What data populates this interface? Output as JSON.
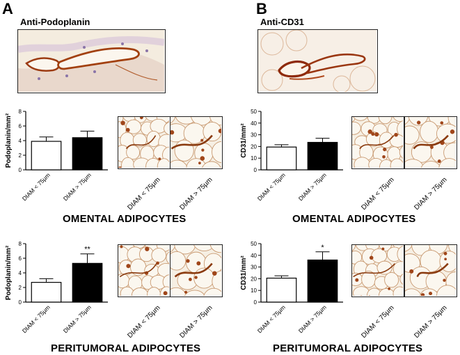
{
  "panels": [
    {
      "letter": "A",
      "stain_title": "Anti-Podoplanin",
      "top_image": "podoplanin-vessel-micrograph",
      "rows": [
        {
          "section_label": "OMENTAL ADIPOCYTES",
          "micrograph_labels": [
            "DIAM < 75µm",
            "DIAM > 75µm"
          ],
          "chart": {
            "type": "bar",
            "ylabel": "Podoplanin/mm²",
            "categories": [
              "DIAM < 75µm",
              "DIAM > 75µm"
            ],
            "values": [
              3.9,
              4.4
            ],
            "errors": [
              0.6,
              0.9
            ],
            "fills": [
              "#ffffff",
              "#000000"
            ],
            "significance": [
              "",
              ""
            ],
            "ylim": [
              0,
              8
            ],
            "yticks": [
              "0",
              "2",
              "4",
              "6",
              "8"
            ]
          }
        },
        {
          "section_label": "PERITUMORAL ADIPOCYTES",
          "micrograph_labels": [
            "DIAM < 75µm",
            "DIAM > 75µm"
          ],
          "chart": {
            "type": "bar",
            "ylabel": "Podoplanin/mm²",
            "categories": [
              "DIAM < 75µm",
              "DIAM > 75µm"
            ],
            "values": [
              2.7,
              5.3
            ],
            "errors": [
              0.5,
              1.3
            ],
            "fills": [
              "#ffffff",
              "#000000"
            ],
            "significance": [
              "",
              "**"
            ],
            "ylim": [
              0,
              8
            ],
            "yticks": [
              "0",
              "2",
              "4",
              "6",
              "8"
            ]
          }
        }
      ]
    },
    {
      "letter": "B",
      "stain_title": "Anti-CD31",
      "top_image": "cd31-vessel-micrograph",
      "rows": [
        {
          "section_label": "OMENTAL ADIPOCYTES",
          "micrograph_labels": [
            "DIAM < 75µm",
            "DIAM > 75µm"
          ],
          "chart": {
            "type": "bar",
            "ylabel": "CD31/mm²",
            "categories": [
              "DIAM < 75µm",
              "DIAM > 75µm"
            ],
            "values": [
              19.5,
              23.5
            ],
            "errors": [
              2.0,
              3.5
            ],
            "fills": [
              "#ffffff",
              "#000000"
            ],
            "significance": [
              "",
              ""
            ],
            "ylim": [
              0,
              50
            ],
            "yticks": [
              "0",
              "10",
              "20",
              "30",
              "40",
              "50"
            ]
          }
        },
        {
          "section_label": "PERITUMORAL ADIPOCYTES",
          "micrograph_labels": [
            "DIAM < 75µm",
            "DIAM > 75µm"
          ],
          "chart": {
            "type": "bar",
            "ylabel": "CD31/mm²",
            "categories": [
              "DIAM < 75µm",
              "DIAM > 75µm"
            ],
            "values": [
              20.5,
              36
            ],
            "errors": [
              2.0,
              7.0
            ],
            "fills": [
              "#ffffff",
              "#000000"
            ],
            "significance": [
              "",
              "*"
            ],
            "ylim": [
              0,
              50
            ],
            "yticks": [
              "0",
              "10",
              "20",
              "30",
              "40",
              "50"
            ]
          }
        }
      ]
    }
  ]
}
